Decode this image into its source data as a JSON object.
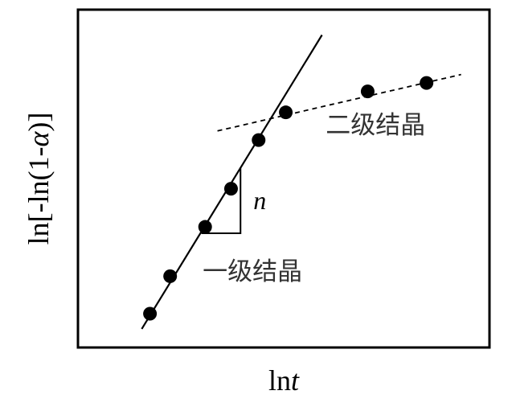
{
  "chart_data": {
    "type": "scatter",
    "title": "",
    "xlabel": {
      "prefix": "ln",
      "italic": "t"
    },
    "ylabel": {
      "prefix": "ln[-ln(1-",
      "italic": "α",
      "suffix": ")]"
    },
    "xlim": [
      0,
      10
    ],
    "ylim": [
      0,
      10
    ],
    "grid": false,
    "legend": "none",
    "series": [
      {
        "name": "一级结晶",
        "line_style": "solid",
        "points": [
          {
            "x": 1.75,
            "y": 1.0
          },
          {
            "x": 2.24,
            "y": 2.11
          },
          {
            "x": 3.09,
            "y": 3.57
          },
          {
            "x": 3.72,
            "y": 4.7
          },
          {
            "x": 4.39,
            "y": 6.14
          }
        ],
        "fit": {
          "x1": 1.55,
          "y1": 0.55,
          "x2": 5.93,
          "y2": 9.25
        }
      },
      {
        "name": "二级结晶",
        "line_style": "dashed",
        "points": [
          {
            "x": 5.05,
            "y": 6.96
          },
          {
            "x": 7.04,
            "y": 7.58
          },
          {
            "x": 8.47,
            "y": 7.83
          }
        ],
        "fit": {
          "x1": 3.39,
          "y1": 6.41,
          "x2": 9.31,
          "y2": 8.08
        }
      }
    ],
    "slope_triangle": {
      "label": "n",
      "x1": 3.0,
      "y1": 3.38,
      "x2": 3.95,
      "y2": 3.38,
      "x3": 3.95,
      "y3": 5.33
    },
    "annotations": [
      {
        "text": "二级结晶",
        "x": 6.02,
        "y": 6.33
      },
      {
        "text": "一级结晶",
        "x": 3.03,
        "y": 2.0
      }
    ],
    "colors": {
      "marker": "#000000",
      "line": "#000000",
      "annotation": "#333333"
    }
  }
}
